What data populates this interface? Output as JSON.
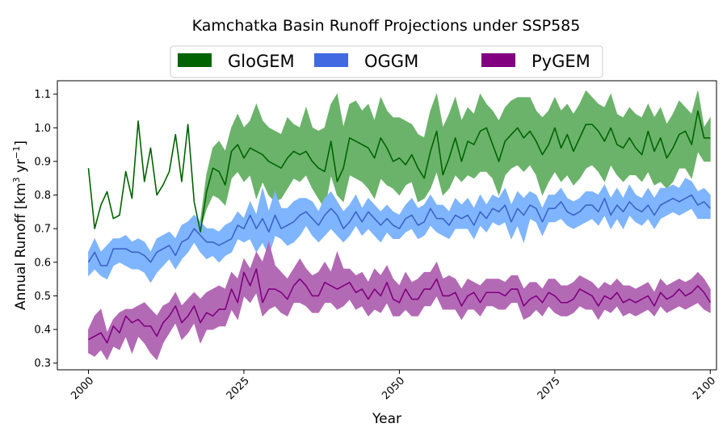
{
  "chart_data": {
    "type": "area",
    "title": "Kamchatka Basin Runoff Projections under SSP585",
    "xlabel": "Year",
    "ylabel_text": "Annual Runoff [km",
    "ylabel_sup1": "3",
    "ylabel_mid": " yr",
    "ylabel_sup2": "−1",
    "ylabel_end": "]",
    "xlim": [
      1995,
      2101
    ],
    "ylim": [
      0.28,
      1.14
    ],
    "xticks": [
      2000,
      2025,
      2050,
      2075,
      2100
    ],
    "yticks": [
      0.3,
      0.4,
      0.5,
      0.6,
      0.7,
      0.8,
      0.9,
      1.0,
      1.1
    ],
    "legend_position": "top-center",
    "series": [
      {
        "name": "GloGEM",
        "fill_color": "#6bb36b",
        "line_color": "#006400",
        "legend_color": "#006400",
        "start_year": 2000,
        "mean": [
          0.88,
          0.7,
          0.77,
          0.81,
          0.73,
          0.74,
          0.87,
          0.79,
          1.02,
          0.84,
          0.94,
          0.8,
          0.83,
          0.87,
          0.98,
          0.84,
          1.01,
          0.78,
          0.69,
          0.81,
          0.88,
          0.87,
          0.83,
          0.93,
          0.95,
          0.91,
          0.94,
          0.93,
          0.92,
          0.9,
          0.89,
          0.88,
          0.91,
          0.93,
          0.92,
          0.93,
          0.9,
          0.88,
          0.87,
          0.96,
          0.84,
          0.88,
          0.97,
          0.96,
          0.95,
          0.94,
          0.91,
          0.97,
          0.94,
          0.9,
          0.91,
          0.89,
          0.92,
          0.88,
          0.85,
          0.93,
          0.99,
          0.86,
          0.91,
          0.97,
          0.9,
          0.96,
          0.95,
          0.99,
          1.0,
          0.95,
          0.9,
          0.96,
          0.98,
          1.0,
          0.97,
          0.99,
          0.96,
          0.92,
          0.95,
          1.0,
          0.94,
          0.98,
          0.93,
          0.97,
          1.01,
          1.01,
          0.99,
          0.96,
          1.0,
          0.95,
          0.94,
          0.97,
          0.94,
          0.92,
          0.99,
          0.93,
          0.97,
          0.91,
          0.94,
          0.98,
          0.99,
          0.95,
          1.05,
          0.97,
          0.97
        ],
        "lower": [
          null,
          null,
          null,
          null,
          null,
          null,
          null,
          null,
          null,
          null,
          null,
          null,
          null,
          null,
          null,
          null,
          null,
          null,
          0.7,
          0.76,
          0.8,
          0.79,
          0.77,
          0.85,
          0.87,
          0.84,
          0.86,
          0.79,
          0.84,
          0.8,
          0.78,
          0.79,
          0.82,
          0.85,
          0.84,
          0.86,
          0.82,
          0.79,
          0.76,
          0.86,
          0.8,
          0.78,
          0.86,
          0.85,
          0.84,
          0.82,
          0.79,
          0.85,
          0.83,
          0.82,
          0.8,
          0.83,
          0.84,
          0.78,
          0.79,
          0.82,
          0.87,
          0.8,
          0.82,
          0.86,
          0.84,
          0.86,
          0.85,
          0.87,
          0.87,
          0.85,
          0.8,
          0.86,
          0.88,
          0.89,
          0.87,
          0.89,
          0.86,
          0.8,
          0.84,
          0.87,
          0.84,
          0.86,
          0.83,
          0.85,
          0.88,
          0.89,
          0.87,
          0.84,
          0.89,
          0.86,
          0.84,
          0.86,
          0.86,
          0.84,
          0.87,
          0.83,
          0.84,
          0.82,
          0.84,
          0.88,
          0.88,
          0.85,
          0.93,
          0.9,
          0.9
        ],
        "upper": [
          null,
          null,
          null,
          null,
          null,
          null,
          null,
          null,
          null,
          null,
          null,
          null,
          null,
          null,
          null,
          null,
          null,
          null,
          0.72,
          0.86,
          0.94,
          0.96,
          0.93,
          1.0,
          1.04,
          1.0,
          1.02,
          1.07,
          1.02,
          1.0,
          0.99,
          0.98,
          1.03,
          1.01,
          1.0,
          1.06,
          1.0,
          0.99,
          1.0,
          1.07,
          1.1,
          1.0,
          1.07,
          1.08,
          1.05,
          1.07,
          1.02,
          1.09,
          1.05,
          1.03,
          1.03,
          1.02,
          1.01,
          0.98,
          0.97,
          1.05,
          1.1,
          1.0,
          1.04,
          1.09,
          1.02,
          1.06,
          1.04,
          1.1,
          1.07,
          1.05,
          1.02,
          1.06,
          1.08,
          1.09,
          1.09,
          1.09,
          1.05,
          1.03,
          1.05,
          1.09,
          1.05,
          1.07,
          1.04,
          1.07,
          1.11,
          1.09,
          1.07,
          1.06,
          1.1,
          1.04,
          1.03,
          1.06,
          1.04,
          1.03,
          1.07,
          1.03,
          1.06,
          1.01,
          1.04,
          1.08,
          1.06,
          1.04,
          1.11,
          1.0,
          1.03
        ]
      },
      {
        "name": "OGGM",
        "fill_color": "#7fb5ff",
        "line_color": "#3b63c9",
        "legend_color": "#4169e1",
        "start_year": 2000,
        "mean": [
          0.6,
          0.63,
          0.59,
          0.59,
          0.64,
          0.64,
          0.64,
          0.63,
          0.63,
          0.62,
          0.6,
          0.63,
          0.64,
          0.65,
          0.62,
          0.66,
          0.67,
          0.7,
          0.68,
          0.66,
          0.66,
          0.65,
          0.66,
          0.67,
          0.71,
          0.7,
          0.74,
          0.7,
          0.73,
          0.69,
          0.74,
          0.7,
          0.71,
          0.72,
          0.74,
          0.75,
          0.73,
          0.71,
          0.74,
          0.76,
          0.74,
          0.7,
          0.72,
          0.75,
          0.72,
          0.75,
          0.73,
          0.71,
          0.73,
          0.71,
          0.7,
          0.73,
          0.74,
          0.71,
          0.72,
          0.76,
          0.73,
          0.73,
          0.71,
          0.74,
          0.73,
          0.74,
          0.71,
          0.75,
          0.73,
          0.76,
          0.75,
          0.77,
          0.72,
          0.76,
          0.74,
          0.77,
          0.76,
          0.72,
          0.76,
          0.76,
          0.78,
          0.75,
          0.74,
          0.75,
          0.77,
          0.77,
          0.75,
          0.79,
          0.74,
          0.77,
          0.75,
          0.78,
          0.76,
          0.75,
          0.77,
          0.74,
          0.77,
          0.78,
          0.79,
          0.78,
          0.79,
          0.8,
          0.77,
          0.78,
          0.76
        ],
        "lower": [
          0.56,
          0.58,
          0.56,
          0.55,
          0.59,
          0.6,
          0.59,
          0.58,
          0.58,
          0.57,
          0.54,
          0.57,
          0.59,
          0.61,
          0.58,
          0.61,
          0.63,
          0.66,
          0.63,
          0.61,
          0.62,
          0.6,
          0.62,
          0.63,
          0.67,
          0.66,
          0.67,
          0.63,
          0.66,
          0.62,
          0.68,
          0.67,
          0.65,
          0.66,
          0.68,
          0.71,
          0.68,
          0.66,
          0.68,
          0.7,
          0.68,
          0.66,
          0.68,
          0.71,
          0.68,
          0.7,
          0.68,
          0.66,
          0.69,
          0.67,
          0.67,
          0.69,
          0.7,
          0.67,
          0.68,
          0.71,
          0.69,
          0.68,
          0.67,
          0.7,
          0.7,
          0.7,
          0.67,
          0.71,
          0.69,
          0.72,
          0.71,
          0.72,
          0.67,
          0.71,
          0.66,
          0.73,
          0.72,
          0.68,
          0.72,
          0.72,
          0.73,
          0.71,
          0.7,
          0.71,
          0.72,
          0.73,
          0.71,
          0.74,
          0.7,
          0.73,
          0.7,
          0.74,
          0.72,
          0.71,
          0.73,
          0.7,
          0.73,
          0.74,
          0.75,
          0.74,
          0.75,
          0.76,
          0.73,
          0.73,
          0.73
        ],
        "upper": [
          0.63,
          0.67,
          0.63,
          0.65,
          0.67,
          0.67,
          0.68,
          0.66,
          0.67,
          0.66,
          0.63,
          0.67,
          0.68,
          0.69,
          0.67,
          0.71,
          0.72,
          0.74,
          0.72,
          0.7,
          0.7,
          0.69,
          0.71,
          0.72,
          0.75,
          0.73,
          0.78,
          0.74,
          0.82,
          0.75,
          0.81,
          0.76,
          0.76,
          0.78,
          0.79,
          0.79,
          0.78,
          0.75,
          0.79,
          0.81,
          0.78,
          0.75,
          0.77,
          0.8,
          0.76,
          0.79,
          0.77,
          0.75,
          0.77,
          0.75,
          0.74,
          0.77,
          0.79,
          0.76,
          0.77,
          0.8,
          0.77,
          0.77,
          0.75,
          0.79,
          0.77,
          0.79,
          0.76,
          0.8,
          0.77,
          0.8,
          0.79,
          0.82,
          0.77,
          0.81,
          0.79,
          0.81,
          0.8,
          0.76,
          0.8,
          0.8,
          0.82,
          0.79,
          0.78,
          0.79,
          0.81,
          0.81,
          0.8,
          0.83,
          0.79,
          0.82,
          0.79,
          0.83,
          0.8,
          0.79,
          0.82,
          0.79,
          0.82,
          0.82,
          0.83,
          0.82,
          0.85,
          0.84,
          0.81,
          0.82,
          0.8
        ]
      },
      {
        "name": "PyGEM",
        "fill_color": "#b36ab5",
        "line_color": "#800080",
        "legend_color": "#800080",
        "start_year": 2000,
        "mean": [
          0.37,
          0.38,
          0.39,
          0.36,
          0.41,
          0.39,
          0.44,
          0.42,
          0.43,
          0.41,
          0.41,
          0.38,
          0.42,
          0.44,
          0.47,
          0.42,
          0.44,
          0.47,
          0.42,
          0.45,
          0.44,
          0.46,
          0.46,
          0.52,
          0.48,
          0.57,
          0.53,
          0.58,
          0.48,
          0.52,
          0.52,
          0.51,
          0.49,
          0.53,
          0.55,
          0.53,
          0.5,
          0.5,
          0.54,
          0.53,
          0.52,
          0.53,
          0.54,
          0.51,
          0.52,
          0.49,
          0.52,
          0.5,
          0.54,
          0.49,
          0.48,
          0.52,
          0.49,
          0.49,
          0.52,
          0.52,
          0.55,
          0.5,
          0.5,
          0.51,
          0.47,
          0.5,
          0.51,
          0.48,
          0.51,
          0.51,
          0.51,
          0.5,
          0.52,
          0.52,
          0.47,
          0.49,
          0.5,
          0.48,
          0.51,
          0.5,
          0.48,
          0.48,
          0.49,
          0.52,
          0.51,
          0.5,
          0.47,
          0.5,
          0.49,
          0.51,
          0.48,
          0.49,
          0.48,
          0.49,
          0.5,
          0.47,
          0.51,
          0.49,
          0.5,
          0.52,
          0.5,
          0.51,
          0.53,
          0.51,
          0.48
        ],
        "lower": [
          0.33,
          0.32,
          0.34,
          0.31,
          0.35,
          0.34,
          0.38,
          0.33,
          0.38,
          0.36,
          0.33,
          0.31,
          0.36,
          0.39,
          0.42,
          0.37,
          0.39,
          0.42,
          0.36,
          0.4,
          0.4,
          0.41,
          0.41,
          0.46,
          0.43,
          0.5,
          0.48,
          0.51,
          0.44,
          0.46,
          0.47,
          0.45,
          0.44,
          0.48,
          0.48,
          0.47,
          0.45,
          0.45,
          0.48,
          0.48,
          0.46,
          0.47,
          0.49,
          0.46,
          0.47,
          0.44,
          0.46,
          0.45,
          0.48,
          0.44,
          0.44,
          0.46,
          0.44,
          0.44,
          0.47,
          0.47,
          0.5,
          0.46,
          0.46,
          0.46,
          0.43,
          0.46,
          0.46,
          0.44,
          0.47,
          0.47,
          0.46,
          0.46,
          0.48,
          0.48,
          0.43,
          0.44,
          0.46,
          0.44,
          0.47,
          0.45,
          0.44,
          0.44,
          0.45,
          0.47,
          0.46,
          0.46,
          0.43,
          0.46,
          0.45,
          0.47,
          0.44,
          0.45,
          0.44,
          0.45,
          0.46,
          0.44,
          0.47,
          0.45,
          0.46,
          0.47,
          0.46,
          0.47,
          0.48,
          0.46,
          0.45
        ],
        "upper": [
          0.4,
          0.44,
          0.46,
          0.39,
          0.43,
          0.45,
          0.46,
          0.46,
          0.47,
          0.48,
          0.46,
          0.44,
          0.47,
          0.48,
          0.51,
          0.47,
          0.49,
          0.51,
          0.49,
          0.51,
          0.52,
          0.53,
          0.52,
          0.57,
          0.55,
          0.61,
          0.58,
          0.63,
          0.6,
          0.66,
          0.59,
          0.57,
          0.55,
          0.58,
          0.61,
          0.58,
          0.56,
          0.57,
          0.6,
          0.57,
          0.63,
          0.58,
          0.58,
          0.56,
          0.57,
          0.54,
          0.58,
          0.56,
          0.59,
          0.55,
          0.53,
          0.57,
          0.54,
          0.55,
          0.57,
          0.57,
          0.6,
          0.55,
          0.56,
          0.55,
          0.52,
          0.55,
          0.54,
          0.53,
          0.55,
          0.55,
          0.55,
          0.54,
          0.56,
          0.56,
          0.52,
          0.54,
          0.54,
          0.52,
          0.55,
          0.55,
          0.53,
          0.53,
          0.54,
          0.56,
          0.55,
          0.54,
          0.52,
          0.54,
          0.53,
          0.55,
          0.53,
          0.53,
          0.52,
          0.53,
          0.54,
          0.51,
          0.55,
          0.53,
          0.54,
          0.55,
          0.54,
          0.55,
          0.57,
          0.55,
          0.52
        ]
      }
    ]
  }
}
